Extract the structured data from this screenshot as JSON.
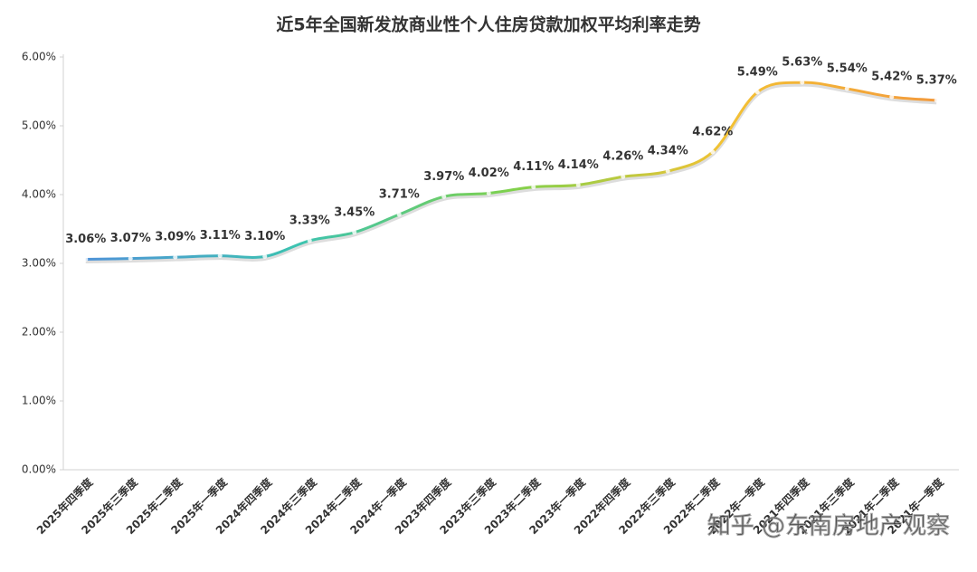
{
  "chart_data": {
    "type": "line",
    "title": "近5年全国新发放商业性个人住房贷款加权平均利率走势",
    "categories": [
      "2025年四季度",
      "2025年三季度",
      "2025年二季度",
      "2025年一季度",
      "2024年四季度",
      "2024年三季度",
      "2024年二季度",
      "2024年一季度",
      "2023年四季度",
      "2023年三季度",
      "2023年二季度",
      "2023年一季度",
      "2022年四季度",
      "2022年三季度",
      "2022年二季度",
      "2022年一季度",
      "2021年四季度",
      "2021年三季度",
      "2021年二季度",
      "2021年一季度"
    ],
    "values": [
      3.06,
      3.07,
      3.09,
      3.11,
      3.1,
      3.33,
      3.45,
      3.71,
      3.97,
      4.02,
      4.11,
      4.14,
      4.26,
      4.34,
      4.62,
      5.49,
      5.63,
      5.54,
      5.42,
      5.37
    ],
    "value_labels": [
      "3.06%",
      "3.07%",
      "3.09%",
      "3.11%",
      "3.10%",
      "3.33%",
      "3.45%",
      "3.71%",
      "3.97%",
      "4.02%",
      "4.11%",
      "4.14%",
      "4.26%",
      "4.34%",
      "4.62%",
      "5.49%",
      "5.63%",
      "5.54%",
      "5.42%",
      "5.37%"
    ],
    "gradient": [
      "#4f93d8",
      "#3cc3b0",
      "#7fd14c",
      "#f3c233",
      "#f39a3c"
    ],
    "ylim": [
      0,
      6
    ],
    "yticks": [
      {
        "value": 0,
        "label": "0.00%"
      },
      {
        "value": 1,
        "label": "1.00%"
      },
      {
        "value": 2,
        "label": "2.00%"
      },
      {
        "value": 3,
        "label": "3.00%"
      },
      {
        "value": 4,
        "label": "4.00%"
      },
      {
        "value": 5,
        "label": "5.00%"
      },
      {
        "value": 6,
        "label": "6.00%"
      }
    ],
    "grid": false,
    "watermark": "知乎 @东南房地产观察"
  }
}
